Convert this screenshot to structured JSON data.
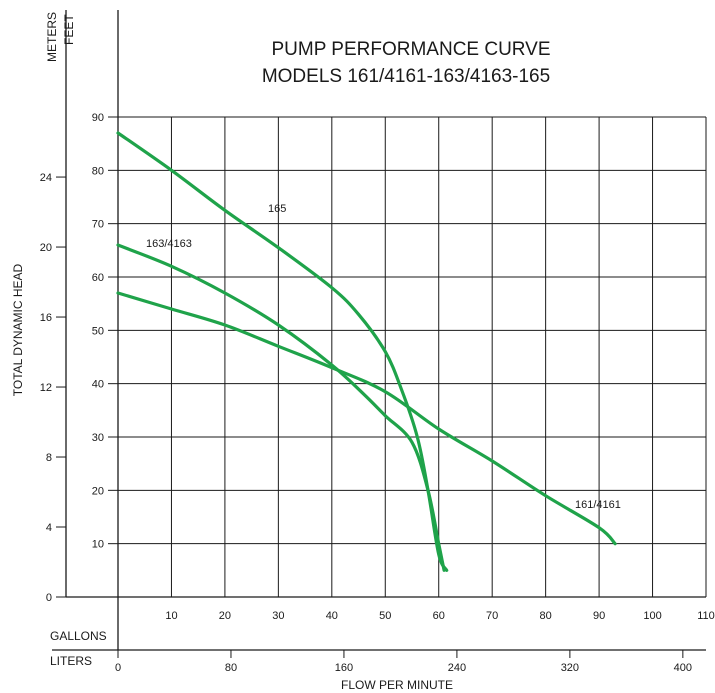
{
  "chart_data": {
    "type": "line",
    "title_lines": [
      "PUMP PERFORMANCE CURVE",
      "MODELS 161/4161-163/4163-165"
    ],
    "xlabel": "FLOW PER MINUTE",
    "ylabel": "TOTAL DYNAMIC HEAD",
    "x_unit_primary": "GALLONS",
    "x_unit_secondary": "LITERS",
    "y_unit_primary": "FEET",
    "y_unit_secondary": "METERS",
    "xlim": [
      0,
      110
    ],
    "ylim": [
      0,
      90
    ],
    "x_ticks": [
      10,
      20,
      30,
      40,
      50,
      60,
      70,
      80,
      90,
      100,
      110
    ],
    "y_ticks": [
      10,
      20,
      30,
      40,
      50,
      60,
      70,
      80,
      90
    ],
    "liters_ticks": [
      0,
      80,
      160,
      240,
      320,
      400
    ],
    "meters_ticks": [
      0,
      4,
      8,
      12,
      16,
      20,
      24
    ],
    "grid": true,
    "line_color": "#1fa34a",
    "series": [
      {
        "name": "165",
        "label": "165",
        "x": [
          0,
          10,
          20,
          30,
          40,
          45,
          50,
          53,
          56,
          58,
          60,
          61.5
        ],
        "y": [
          87,
          80,
          72.5,
          65.5,
          58,
          53,
          46,
          39,
          30,
          20,
          8,
          5
        ]
      },
      {
        "name": "163/4163",
        "label": "163/4163",
        "x": [
          0,
          10,
          20,
          30,
          40,
          46,
          50,
          55,
          58,
          60,
          61
        ],
        "y": [
          66,
          62,
          57,
          51,
          43.5,
          38,
          34,
          29,
          20,
          10,
          5
        ]
      },
      {
        "name": "161/4161",
        "label": "161/4161",
        "x": [
          0,
          10,
          20,
          30,
          40,
          50,
          60,
          70,
          80,
          90,
          93
        ],
        "y": [
          57,
          54,
          51,
          47,
          43,
          38.5,
          31.5,
          25.5,
          19,
          13,
          10
        ]
      }
    ]
  }
}
